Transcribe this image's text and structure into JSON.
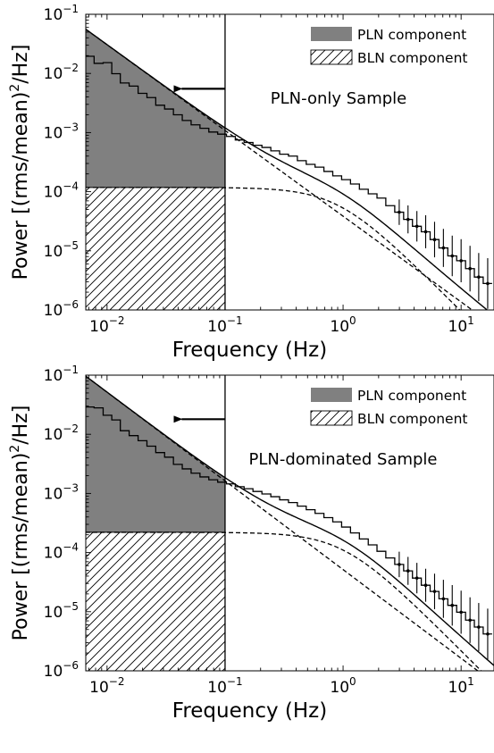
{
  "chart_data": [
    {
      "type": "line",
      "xlabel": "Frequency (Hz)",
      "ylabel_main": "Power [(rms/mean)",
      "ylabel_sup": "2",
      "ylabel_tail": "/Hz]",
      "x_scale": "log",
      "y_scale": "log",
      "xlim": [
        0.0066,
        19
      ],
      "ylim": [
        1e-06,
        0.1
      ],
      "x_ticks": [
        {
          "value": 0.01,
          "base": "10",
          "exp": "−2"
        },
        {
          "value": 0.1,
          "base": "10",
          "exp": "−1"
        },
        {
          "value": 1,
          "base": "10",
          "exp": "0"
        },
        {
          "value": 10,
          "base": "10",
          "exp": "1"
        }
      ],
      "y_ticks": [
        {
          "value": 1e-06,
          "base": "10",
          "exp": "−6"
        },
        {
          "value": 1e-05,
          "base": "10",
          "exp": "−5"
        },
        {
          "value": 0.0001,
          "base": "10",
          "exp": "−4"
        },
        {
          "value": 0.001,
          "base": "10",
          "exp": "−3"
        },
        {
          "value": 0.01,
          "base": "10",
          "exp": "−2"
        },
        {
          "value": 0.1,
          "base": "10",
          "exp": "−1"
        }
      ],
      "annotation": "PLN-only Sample",
      "legend": [
        {
          "label": "PLN component",
          "style": "filled",
          "color": "#808080"
        },
        {
          "label": "BLN component",
          "style": "hatched",
          "color": "#000000"
        }
      ],
      "legend_placement": "top-right",
      "vline_x": 0.1,
      "arrow": {
        "y": 0.0055,
        "x_from": 0.1,
        "x_to": 0.036
      },
      "pln_model": {
        "norm_at_1hz": 3.85e-05,
        "index": 1.45
      },
      "bln_model": {
        "level": 0.000118,
        "break_hz": 0.9,
        "shape_index": 2
      },
      "shaded_region": {
        "x_from": 0.0066,
        "x_to": 0.1
      },
      "data_points": [
        [
          0.0071,
          0.0195
        ],
        [
          0.0085,
          0.0148
        ],
        [
          0.0101,
          0.0152
        ],
        [
          0.0119,
          0.0099
        ],
        [
          0.0141,
          0.0069
        ],
        [
          0.0168,
          0.0061
        ],
        [
          0.02,
          0.0046
        ],
        [
          0.0237,
          0.0039
        ],
        [
          0.0282,
          0.0029
        ],
        [
          0.0335,
          0.0025
        ],
        [
          0.0398,
          0.002
        ],
        [
          0.0473,
          0.0016
        ],
        [
          0.0562,
          0.00135
        ],
        [
          0.0668,
          0.00118
        ],
        [
          0.0794,
          0.00102
        ],
        [
          0.0944,
          0.00094
        ],
        [
          0.112,
          0.00086
        ],
        [
          0.133,
          0.00075
        ],
        [
          0.158,
          0.00068
        ],
        [
          0.188,
          0.00061
        ],
        [
          0.224,
          0.00056
        ],
        [
          0.266,
          0.00049
        ],
        [
          0.316,
          0.00043
        ],
        [
          0.376,
          0.0004
        ],
        [
          0.447,
          0.000335
        ],
        [
          0.531,
          0.00029
        ],
        [
          0.631,
          0.00026
        ],
        [
          0.75,
          0.00022
        ],
        [
          0.891,
          0.000185
        ],
        [
          1.06,
          0.00016
        ],
        [
          1.26,
          0.000135
        ],
        [
          1.5,
          0.00011
        ],
        [
          1.78,
          9.2e-05
        ],
        [
          2.11,
          7.8e-05
        ],
        [
          2.51,
          5.8e-05
        ],
        [
          2.99,
          4.5e-05
        ],
        [
          3.55,
          3.4e-05
        ],
        [
          4.22,
          2.6e-05
        ],
        [
          5.01,
          2.1e-05
        ],
        [
          5.96,
          1.55e-05
        ],
        [
          7.08,
          1.12e-05
        ],
        [
          8.41,
          8.2e-06
        ],
        [
          10.0,
          6.8e-06
        ],
        [
          11.9,
          5e-06
        ],
        [
          14.1,
          3.6e-06
        ],
        [
          16.8,
          2.8e-06
        ]
      ]
    },
    {
      "type": "line",
      "xlabel": "Frequency (Hz)",
      "ylabel_main": "Power [(rms/mean)",
      "ylabel_sup": "2",
      "ylabel_tail": "/Hz]",
      "x_scale": "log",
      "y_scale": "log",
      "xlim": [
        0.0066,
        19
      ],
      "ylim": [
        1e-06,
        0.1
      ],
      "x_ticks": [
        {
          "value": 0.01,
          "base": "10",
          "exp": "−2"
        },
        {
          "value": 0.1,
          "base": "10",
          "exp": "−1"
        },
        {
          "value": 1,
          "base": "10",
          "exp": "0"
        },
        {
          "value": 10,
          "base": "10",
          "exp": "1"
        }
      ],
      "y_ticks": [
        {
          "value": 1e-06,
          "base": "10",
          "exp": "−6"
        },
        {
          "value": 1e-05,
          "base": "10",
          "exp": "−5"
        },
        {
          "value": 0.0001,
          "base": "10",
          "exp": "−4"
        },
        {
          "value": 0.001,
          "base": "10",
          "exp": "−3"
        },
        {
          "value": 0.01,
          "base": "10",
          "exp": "−2"
        },
        {
          "value": 0.1,
          "base": "10",
          "exp": "−1"
        }
      ],
      "annotation": "PLN-dominated Sample",
      "legend": [
        {
          "label": "PLN component",
          "style": "filled",
          "color": "#808080"
        },
        {
          "label": "BLN component",
          "style": "hatched",
          "color": "#000000"
        }
      ],
      "legend_placement": "top-right",
      "vline_x": 0.1,
      "arrow": {
        "y": 0.018,
        "x_from": 0.1,
        "x_to": 0.036
      },
      "pln_model": {
        "norm_at_1hz": 5.15e-05,
        "index": 1.5
      },
      "bln_model": {
        "level": 0.00022,
        "break_hz": 1.0,
        "shape_index": 2
      },
      "shaded_region": {
        "x_from": 0.0066,
        "x_to": 0.1
      },
      "data_points": [
        [
          0.0071,
          0.029
        ],
        [
          0.0085,
          0.028
        ],
        [
          0.0101,
          0.021
        ],
        [
          0.0119,
          0.0175
        ],
        [
          0.0141,
          0.0115
        ],
        [
          0.0168,
          0.0095
        ],
        [
          0.02,
          0.0078
        ],
        [
          0.0237,
          0.0063
        ],
        [
          0.0282,
          0.0049
        ],
        [
          0.0335,
          0.0041
        ],
        [
          0.0398,
          0.0031
        ],
        [
          0.0473,
          0.0026
        ],
        [
          0.0562,
          0.0022
        ],
        [
          0.0668,
          0.0019
        ],
        [
          0.0794,
          0.0017
        ],
        [
          0.0944,
          0.00155
        ],
        [
          0.112,
          0.00145
        ],
        [
          0.133,
          0.0013
        ],
        [
          0.158,
          0.0012
        ],
        [
          0.188,
          0.00108
        ],
        [
          0.224,
          0.00098
        ],
        [
          0.266,
          0.00088
        ],
        [
          0.316,
          0.00078
        ],
        [
          0.376,
          0.0007
        ],
        [
          0.447,
          0.00061
        ],
        [
          0.531,
          0.00053
        ],
        [
          0.631,
          0.00046
        ],
        [
          0.75,
          0.00039
        ],
        [
          0.891,
          0.00033
        ],
        [
          1.06,
          0.00027
        ],
        [
          1.26,
          0.000215
        ],
        [
          1.5,
          0.00017
        ],
        [
          1.78,
          0.000135
        ],
        [
          2.11,
          0.000105
        ],
        [
          2.51,
          8.1e-05
        ],
        [
          2.99,
          6.3e-05
        ],
        [
          3.55,
          4.9e-05
        ],
        [
          4.22,
          3.7e-05
        ],
        [
          5.01,
          2.8e-05
        ],
        [
          5.96,
          2.2e-05
        ],
        [
          7.08,
          1.65e-05
        ],
        [
          8.41,
          1.28e-05
        ],
        [
          10.0,
          9.8e-06
        ],
        [
          11.9,
          7.2e-06
        ],
        [
          14.1,
          5.5e-06
        ],
        [
          16.8,
          4.2e-06
        ]
      ]
    }
  ]
}
